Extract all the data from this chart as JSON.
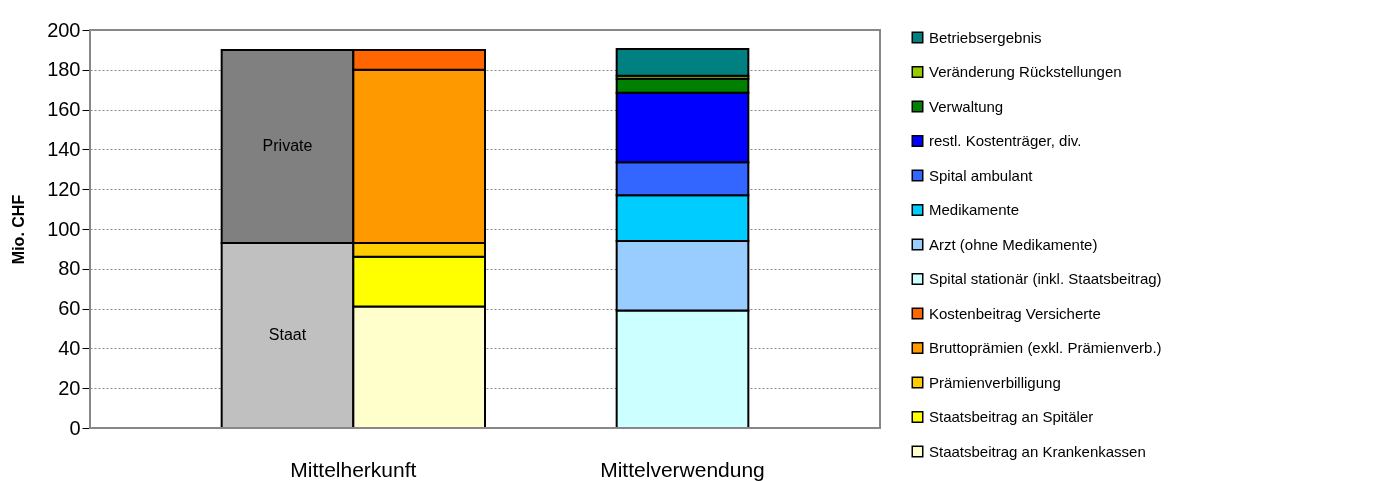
{
  "chart_data": {
    "type": "bar",
    "stacked": true,
    "ylabel": "Mio. CHF",
    "categories": [
      null,
      null,
      "Mittelverwendung"
    ],
    "annotations": [
      "Mittelherkunft"
    ],
    "series": [
      {
        "name": "Staat",
        "color": "#c0c0c0",
        "values": [
          93,
          null,
          null
        ]
      },
      {
        "name": "Private",
        "color": "#808080",
        "values": [
          97,
          null,
          null
        ]
      },
      {
        "name": "Staatsbeitrag an Krankenkassen",
        "color": "#ffffcc",
        "values": [
          null,
          61,
          null
        ]
      },
      {
        "name": "Staatsbeitrag an Spitäler",
        "color": "#ffff00",
        "values": [
          null,
          25,
          null
        ]
      },
      {
        "name": "Prämienverbilligung",
        "color": "#ffcc00",
        "values": [
          null,
          7,
          null
        ]
      },
      {
        "name": "Bruttoprämien (exkl. Prämienverb.)",
        "color": "#ff9900",
        "values": [
          null,
          87,
          null
        ]
      },
      {
        "name": "Kostenbeitrag Versicherte",
        "color": "#ff6600",
        "values": [
          null,
          10,
          null
        ]
      },
      {
        "name": "Spital stationär (inkl. Staatsbeitrag)",
        "color": "#ccffff",
        "values": [
          null,
          null,
          59
        ]
      },
      {
        "name": "Arzt (ohne Medikamente)",
        "color": "#99ccff",
        "values": [
          null,
          null,
          35
        ]
      },
      {
        "name": "Medikamente",
        "color": "#00ccff",
        "values": [
          null,
          null,
          23
        ]
      },
      {
        "name": "Spital ambulant",
        "color": "#3366ff",
        "values": [
          null,
          null,
          16.5
        ]
      },
      {
        "name": "restl. Kostenträger, div.",
        "color": "#0000ff",
        "values": [
          null,
          null,
          35
        ]
      },
      {
        "name": "Verwaltung",
        "color": "#008000",
        "values": [
          null,
          null,
          7
        ]
      },
      {
        "name": "Veränderung Rückstellungen",
        "color": "#99cc00",
        "values": [
          null,
          null,
          1.5
        ]
      },
      {
        "name": "Betriebsergebnis",
        "color": "#008080",
        "values": [
          null,
          null,
          13.5
        ]
      }
    ],
    "ylim": [
      0,
      200
    ],
    "yticks": [
      0,
      20,
      40,
      60,
      80,
      100,
      120,
      140,
      160,
      180,
      200
    ],
    "grid": "y",
    "legend": "right"
  }
}
